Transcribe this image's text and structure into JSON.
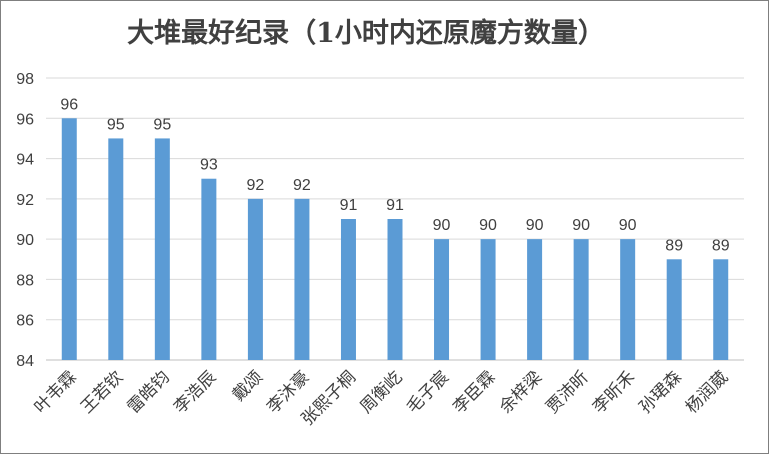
{
  "chart_data": {
    "type": "bar",
    "title": "大堆最好纪录（1小时内还原魔方数量）",
    "xlabel": "",
    "ylabel": "",
    "ylim": [
      84,
      98
    ],
    "yticks": [
      84,
      86,
      88,
      90,
      92,
      94,
      96,
      98
    ],
    "grid": true,
    "legend": "none",
    "categories": [
      "叶韦霖",
      "王若钦",
      "雷皓钧",
      "李浩辰",
      "戴颂",
      "李沐豪",
      "张熙子桐",
      "周衡屹",
      "毛子宸",
      "李臣霖",
      "余梓梁",
      "贾沛昕",
      "李昕禾",
      "孙珺森",
      "杨润葳"
    ],
    "values": [
      96,
      95,
      95,
      93,
      92,
      92,
      91,
      91,
      90,
      90,
      90,
      90,
      90,
      89,
      89
    ],
    "colors": {
      "bar": "#5b9bd5",
      "grid": "#d9d9d9",
      "axis": "#bfbfbf",
      "text": "#404040"
    }
  }
}
